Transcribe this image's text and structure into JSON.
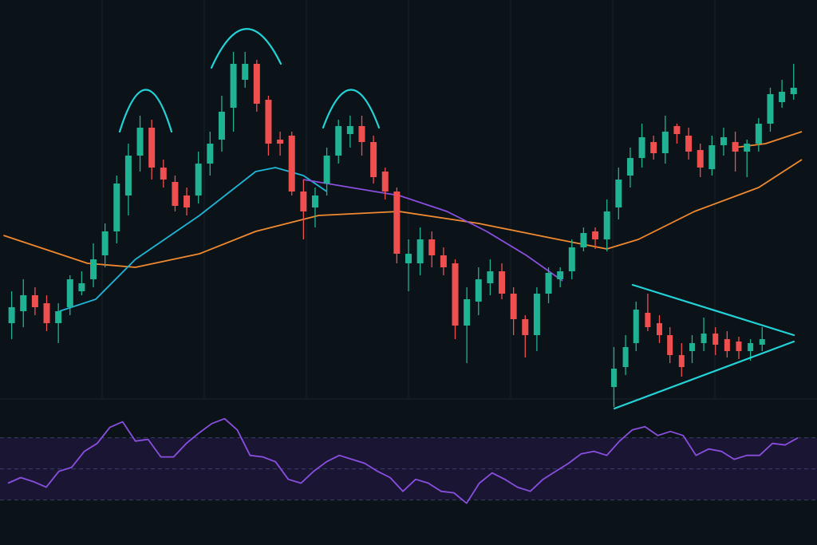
{
  "chart_data": [
    {
      "type": "candlestick",
      "xlim": [
        -1,
        69
      ],
      "ylim": [
        -20,
        500
      ],
      "up_color": "#1fb394",
      "down_color": "#ef4f4f",
      "open": [
        95,
        110,
        130,
        120,
        95,
        115,
        135,
        150,
        180,
        210,
        255,
        305,
        340,
        290,
        272,
        255,
        255,
        295,
        325,
        365,
        400,
        420,
        375,
        325,
        330,
        260,
        240,
        270,
        305,
        332,
        342,
        322,
        285,
        260,
        170,
        170,
        200,
        180,
        170,
        92,
        122,
        145,
        160,
        132,
        100,
        80,
        132,
        150,
        160,
        190,
        210,
        200,
        240,
        280,
        302,
        322,
        308,
        342,
        330,
        312,
        288,
        318,
        322,
        310,
        320,
        345,
        372,
        382
      ],
      "close": [
        115,
        130,
        115,
        95,
        110,
        150,
        145,
        175,
        210,
        270,
        305,
        340,
        290,
        275,
        242,
        240,
        295,
        320,
        360,
        420,
        420,
        370,
        320,
        320,
        260,
        235,
        255,
        305,
        342,
        342,
        322,
        278,
        260,
        182,
        182,
        200,
        180,
        165,
        92,
        125,
        150,
        160,
        132,
        100,
        80,
        132,
        158,
        160,
        190,
        208,
        200,
        235,
        275,
        302,
        328,
        308,
        335,
        332,
        310,
        290,
        318,
        328,
        310,
        320,
        345,
        382,
        385,
        390
      ],
      "high": [
        135,
        150,
        140,
        130,
        120,
        155,
        160,
        195,
        220,
        280,
        320,
        355,
        350,
        300,
        280,
        265,
        310,
        335,
        380,
        435,
        435,
        425,
        380,
        335,
        335,
        275,
        265,
        315,
        350,
        355,
        355,
        330,
        290,
        265,
        200,
        215,
        210,
        190,
        175,
        140,
        165,
        175,
        170,
        140,
        105,
        140,
        165,
        165,
        200,
        215,
        215,
        250,
        290,
        315,
        345,
        330,
        355,
        345,
        340,
        320,
        330,
        340,
        335,
        325,
        352,
        390,
        400,
        420
      ],
      "low": [
        75,
        90,
        105,
        85,
        70,
        105,
        130,
        140,
        165,
        195,
        230,
        285,
        275,
        265,
        235,
        230,
        245,
        280,
        310,
        335,
        390,
        360,
        305,
        305,
        255,
        200,
        215,
        255,
        295,
        315,
        305,
        270,
        250,
        170,
        135,
        155,
        165,
        155,
        75,
        45,
        105,
        130,
        125,
        80,
        52,
        60,
        120,
        140,
        150,
        185,
        188,
        185,
        225,
        265,
        290,
        300,
        295,
        320,
        300,
        278,
        280,
        305,
        285,
        278,
        310,
        335,
        365,
        375
      ],
      "overlays": [
        {
          "color": "#f08a30",
          "x": [
            -0.7,
            6.5,
            10.6,
            16.1,
            20.9,
            26.3,
            33.2,
            40,
            46.8,
            51,
            53.7,
            58.5,
            64,
            67.7
          ],
          "values": [
            205,
            170,
            165,
            182,
            210,
            230,
            235,
            220,
            200,
            188,
            200,
            235,
            265,
            300
          ]
        },
        {
          "color": "#f08a30",
          "x": [
            61.9,
            64.6,
            67.7
          ],
          "values": [
            315,
            320,
            335
          ]
        },
        {
          "color": "#1fb6d8",
          "x": [
            4.1,
            7.2,
            10.6,
            16.1,
            20.9,
            22.6,
            25,
            27
          ],
          "values": [
            110,
            125,
            175,
            230,
            285,
            290,
            280,
            260
          ]
        },
        {
          "color": "#8a4fe0",
          "x": [
            25,
            31.1,
            33.2,
            37.3,
            40.7,
            44.1,
            47.2
          ],
          "values": [
            275,
            260,
            255,
            235,
            210,
            180,
            148
          ]
        }
      ],
      "pattern_candles": {
        "x": [
          51.6,
          52.6,
          53.5,
          54.5,
          55.5,
          56.4,
          57.4,
          58.3,
          59.3,
          60.3,
          61.3,
          62.3,
          63.3,
          64.3
        ],
        "open": [
          15,
          40,
          70,
          108,
          95,
          80,
          55,
          60,
          70,
          82,
          75,
          72,
          60,
          68
        ],
        "close": [
          38,
          65,
          112,
          90,
          80,
          55,
          40,
          70,
          82,
          68,
          60,
          60,
          70,
          75
        ],
        "high": [
          65,
          80,
          122,
          132,
          105,
          90,
          70,
          80,
          102,
          90,
          85,
          78,
          75,
          90
        ],
        "low": [
          -10,
          30,
          60,
          85,
          70,
          45,
          28,
          45,
          60,
          55,
          52,
          50,
          48,
          60
        ]
      }
    },
    {
      "type": "line",
      "ylim": [
        0,
        95
      ],
      "color": "#8a4fe0",
      "levels": [
        30,
        50,
        70
      ],
      "values": [
        40.8,
        44.4,
        41.8,
        38.2,
        48.5,
        51,
        61.3,
        66.4,
        76.7,
        80.3,
        67.9,
        69,
        57.7,
        57.7,
        66.4,
        73.1,
        79.2,
        82.3,
        75.1,
        58.7,
        57.7,
        54.6,
        43.3,
        40.8,
        48.5,
        54.6,
        58.7,
        56.2,
        53.6,
        48.5,
        44.4,
        35.6,
        43.3,
        40.8,
        35.6,
        34.6,
        27.9,
        40.8,
        47.4,
        43.3,
        38.2,
        35.6,
        43.3,
        48.5,
        53.6,
        59.7,
        61.3,
        58.7,
        67.9,
        75.1,
        77.2,
        71.5,
        74.1,
        71.5,
        58.7,
        62.8,
        61.3,
        56.2,
        58.7,
        58.7,
        66.4,
        65.4,
        70
      ]
    }
  ]
}
